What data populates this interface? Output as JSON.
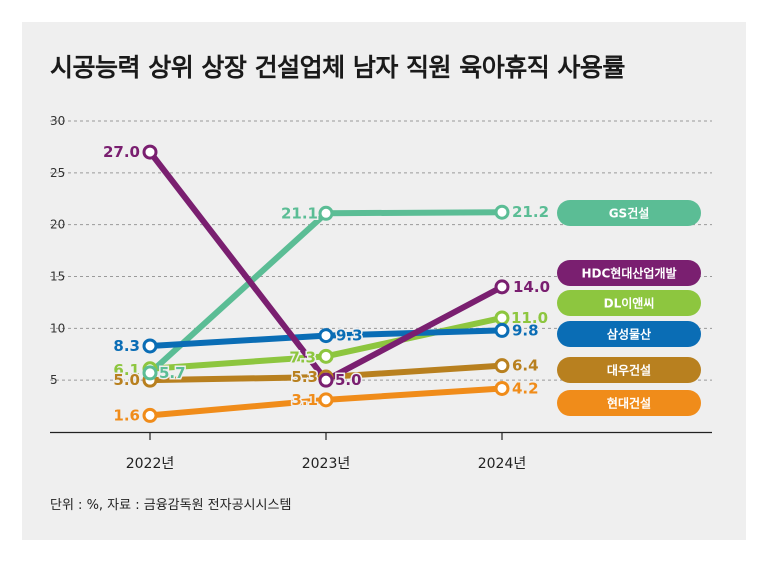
{
  "chart_data": {
    "type": "line",
    "title": "시공능력 상위 상장 건설업체 남자 직원 육아휴직 사용률",
    "footnote": "단위 : %, 자료 : 금융감독원 전자공시시스템",
    "categories": [
      "2022년",
      "2023년",
      "2024년"
    ],
    "ylim": [
      0,
      30
    ],
    "yticks": [
      5,
      10,
      15,
      20,
      25,
      30
    ],
    "grid": true,
    "legend_position": "right",
    "series": [
      {
        "name": "HDC현대산업개발",
        "color": "#7a1f70",
        "values": [
          27.0,
          5.0,
          14.0
        ],
        "labels": [
          "27.0",
          "5.0",
          "14.0"
        ]
      },
      {
        "name": "GS건설",
        "color": "#5bbd95",
        "values": [
          5.7,
          21.1,
          21.2
        ],
        "labels": [
          "5.7",
          "21.1",
          "21.2"
        ]
      },
      {
        "name": "DL이앤씨",
        "color": "#8dc63f",
        "values": [
          6.1,
          7.3,
          11.0
        ],
        "labels": [
          "6.1",
          "7.3",
          "11.0"
        ]
      },
      {
        "name": "삼성물산",
        "color": "#0a6db5",
        "values": [
          8.3,
          9.3,
          9.8
        ],
        "labels": [
          "8.3",
          "9.3",
          "9.8"
        ]
      },
      {
        "name": "대우건설",
        "color": "#b8801f",
        "values": [
          5.0,
          5.3,
          6.4
        ],
        "labels": [
          "5.0",
          "5.3",
          "6.4"
        ]
      },
      {
        "name": "현대건설",
        "color": "#f08c1a",
        "values": [
          1.6,
          3.1,
          4.2
        ],
        "labels": [
          "1.6",
          "3.1",
          "4.2"
        ]
      }
    ],
    "legend": [
      {
        "name": "GS건설",
        "color": "#5bbd95"
      },
      {
        "name": "HDC현대산업개발",
        "color": "#7a1f70"
      },
      {
        "name": "DL이앤씨",
        "color": "#8dc63f"
      },
      {
        "name": "삼성물산",
        "color": "#0a6db5"
      },
      {
        "name": "대우건설",
        "color": "#b8801f"
      },
      {
        "name": "현대건설",
        "color": "#f08c1a"
      }
    ]
  }
}
